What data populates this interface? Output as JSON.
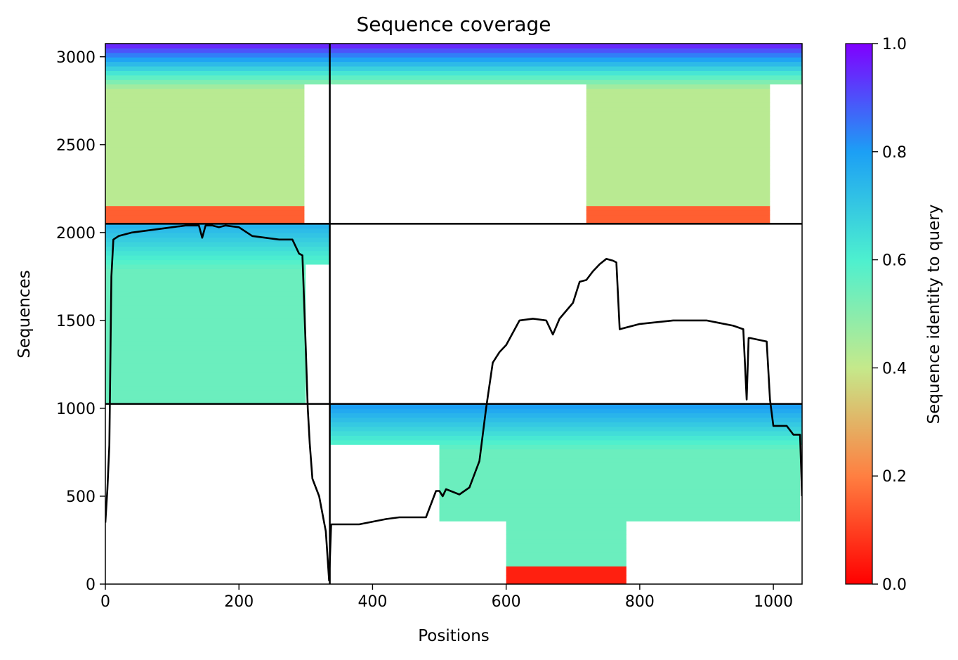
{
  "chart_data": {
    "type": "heatmap",
    "title": "Sequence coverage",
    "xlabel": "Positions",
    "ylabel": "Sequences",
    "xlim": [
      0,
      1043
    ],
    "ylim": [
      0,
      3075
    ],
    "xticks": [
      0,
      200,
      400,
      600,
      800,
      1000
    ],
    "yticks": [
      0,
      500,
      1000,
      1500,
      2000,
      2500,
      3000
    ],
    "colorbar": {
      "label": "Sequence identity to query",
      "min": 0.0,
      "max": 1.0,
      "ticks": [
        "0.0",
        "0.2",
        "0.4",
        "0.6",
        "0.8",
        "1.0"
      ],
      "colormap": "rainbow_r",
      "colors": [
        "#ff0000",
        "#ff7f41",
        "#80feb3",
        "#00b5eb",
        "#8000ff"
      ]
    },
    "chain_boundaries": {
      "x": [
        336
      ],
      "y": [
        1025,
        2050
      ]
    },
    "coverage_blocks": [
      {
        "chain": "A",
        "x_range": [
          0,
          336
        ],
        "rows": [
          2050,
          3075
        ],
        "identity_top": 0.95,
        "identity_mid": 0.42,
        "identity_bottom": 0.15,
        "filled_to_x": 298
      },
      {
        "chain": "B",
        "x_range": [
          0,
          336
        ],
        "rows": [
          1025,
          2050
        ],
        "identity_top": 0.75,
        "identity_mid": 0.55,
        "identity_bottom": 0.55,
        "filled_to_x": 300
      },
      {
        "chain": "C-top",
        "x_range": [
          336,
          1043
        ],
        "rows": [
          2050,
          3075
        ],
        "identity_top": 0.95,
        "identity_mid": 0.42,
        "identity_bottom": 0.15,
        "filled_from_x": 720,
        "filled_to_x": 995
      },
      {
        "chain": "C-bottom",
        "x_range": [
          336,
          1043
        ],
        "rows": [
          0,
          1025
        ],
        "identity_top": 0.8,
        "identity_mid": 0.55,
        "identity_bottom": 0.05,
        "filled_from_x": 500,
        "filled_to_x": 1040
      }
    ],
    "coverage_line": {
      "x": [
        0,
        3,
        6,
        9,
        12,
        20,
        40,
        60,
        80,
        100,
        120,
        140,
        145,
        150,
        160,
        170,
        180,
        200,
        220,
        240,
        260,
        280,
        290,
        295,
        300,
        303,
        306,
        310,
        320,
        330,
        335,
        338,
        340,
        380,
        420,
        440,
        480,
        495,
        500,
        505,
        510,
        530,
        545,
        560,
        570,
        580,
        590,
        600,
        620,
        640,
        660,
        670,
        680,
        700,
        710,
        720,
        730,
        740,
        750,
        760,
        765,
        770,
        800,
        850,
        900,
        940,
        955,
        960,
        963,
        965,
        990,
        995,
        1000,
        1020,
        1030,
        1040,
        1043
      ],
      "y": [
        350,
        540,
        790,
        1750,
        1960,
        1980,
        2000,
        2010,
        2020,
        2030,
        2040,
        2040,
        1970,
        2040,
        2040,
        2030,
        2040,
        2030,
        1980,
        1970,
        1960,
        1960,
        1880,
        1870,
        1350,
        1000,
        800,
        600,
        500,
        300,
        20,
        340,
        340,
        340,
        370,
        380,
        380,
        530,
        530,
        500,
        540,
        510,
        550,
        700,
        1000,
        1260,
        1320,
        1360,
        1500,
        1510,
        1500,
        1420,
        1510,
        1600,
        1720,
        1730,
        1780,
        1820,
        1850,
        1840,
        1830,
        1450,
        1480,
        1500,
        1500,
        1470,
        1450,
        1050,
        1400,
        1400,
        1380,
        1050,
        900,
        900,
        850,
        850,
        500
      ]
    }
  }
}
